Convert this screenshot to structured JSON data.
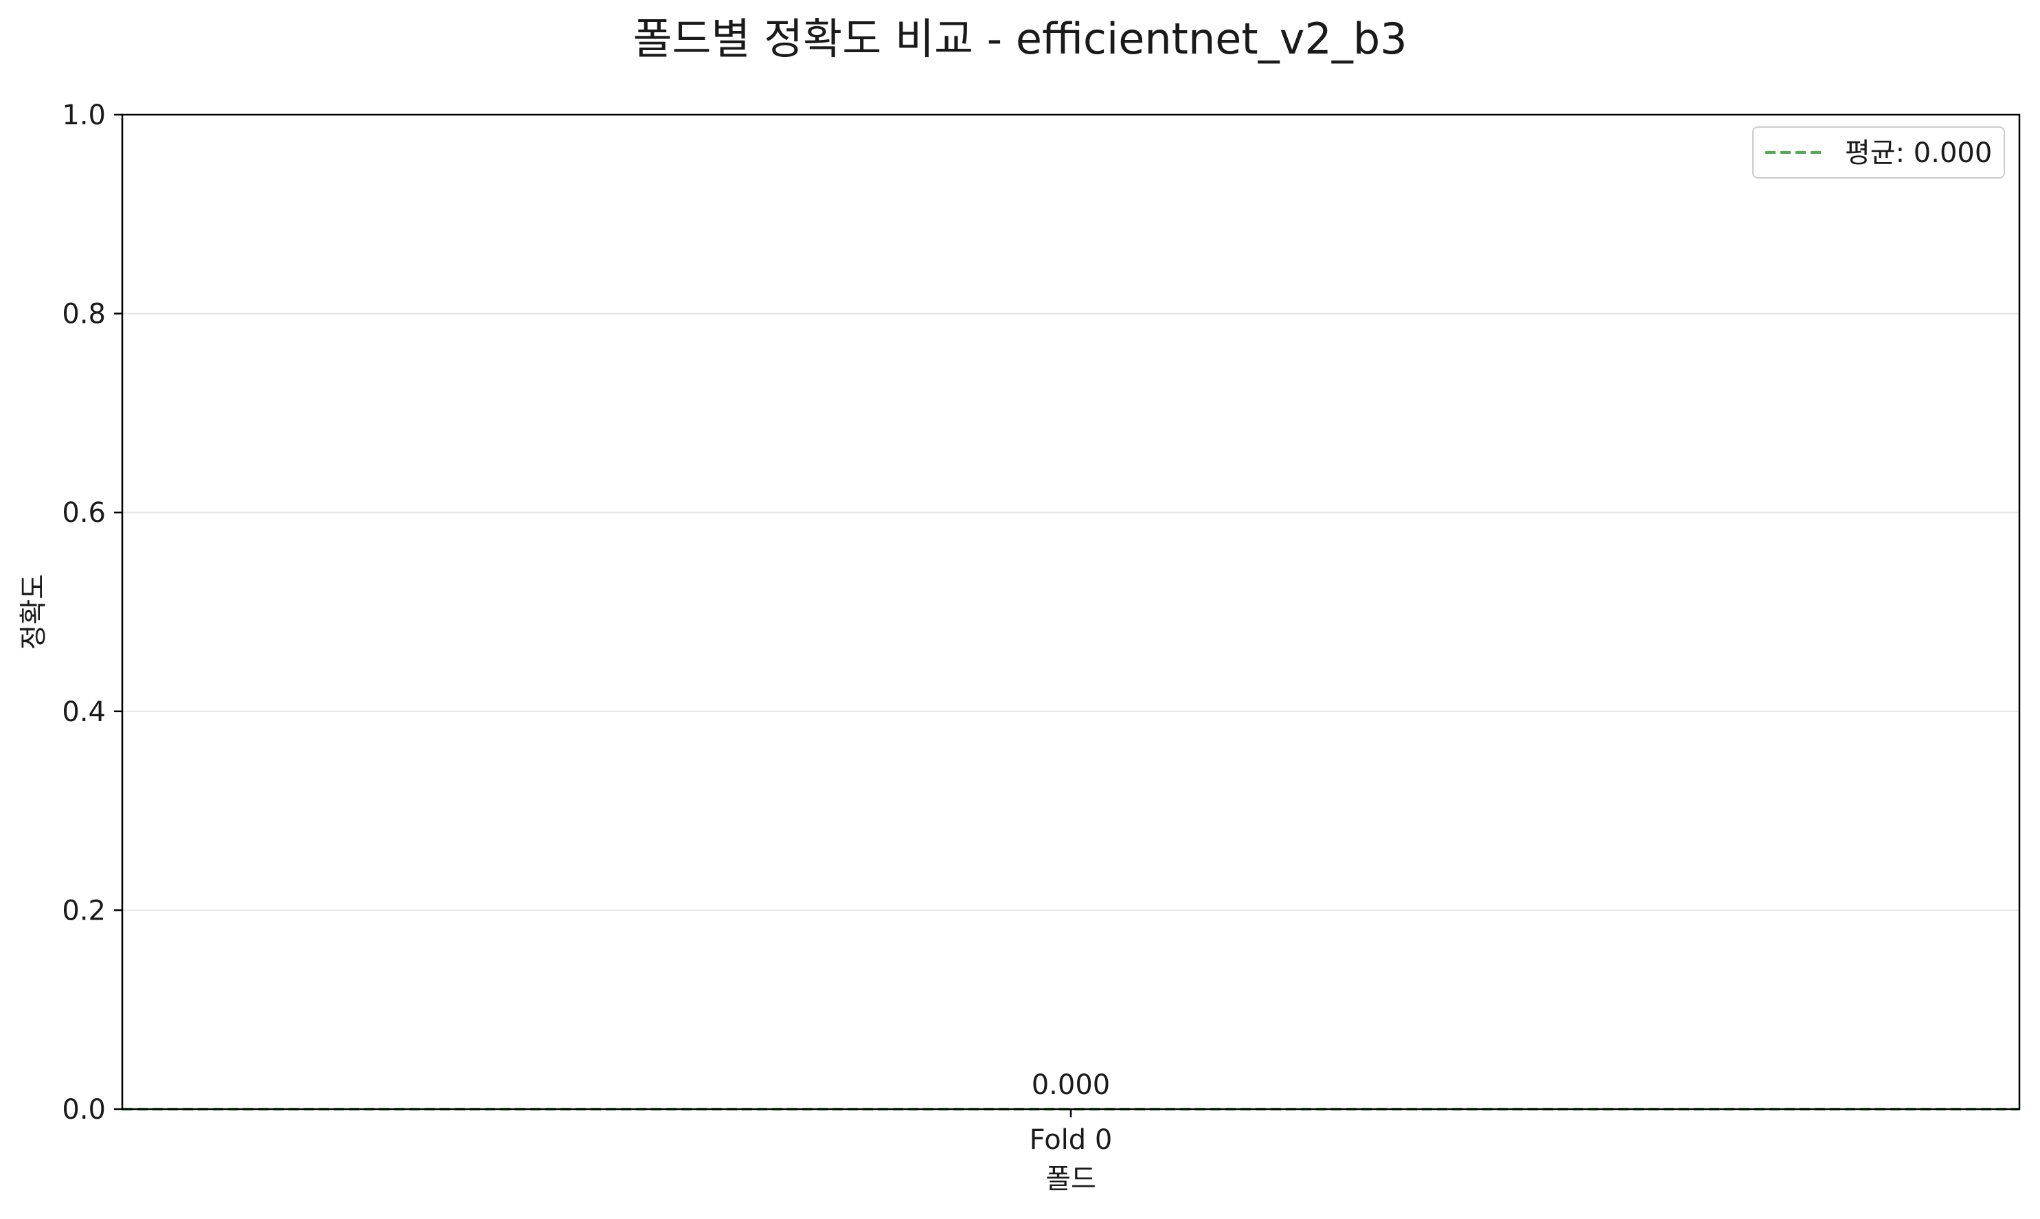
{
  "chart_data": {
    "type": "bar",
    "title": "폴드별 정확도 비교 - efficientnet_v2_b3",
    "xlabel": "폴드",
    "ylabel": "정확도",
    "categories": [
      "Fold 0"
    ],
    "values": [
      0.0
    ],
    "data_labels": [
      "0.000"
    ],
    "ylim": [
      0.0,
      1.0
    ],
    "yticks": [
      0.0,
      0.2,
      0.4,
      0.6,
      0.8,
      1.0
    ],
    "ytick_labels": [
      "0.0",
      "0.2",
      "0.4",
      "0.6",
      "0.8",
      "1.0"
    ],
    "grid": {
      "y": true,
      "x": false
    },
    "reference_line": {
      "value": 0.0,
      "style": "dashed",
      "color": "#4caf50"
    },
    "legend": {
      "position": "top-right",
      "entries": [
        {
          "label": "평균: 0.000",
          "style": "dashed",
          "color": "#4caf50"
        }
      ]
    },
    "colors": {
      "bar": "#4a7fbf",
      "grid": "#e6e6e6",
      "axes": "#000000"
    }
  }
}
